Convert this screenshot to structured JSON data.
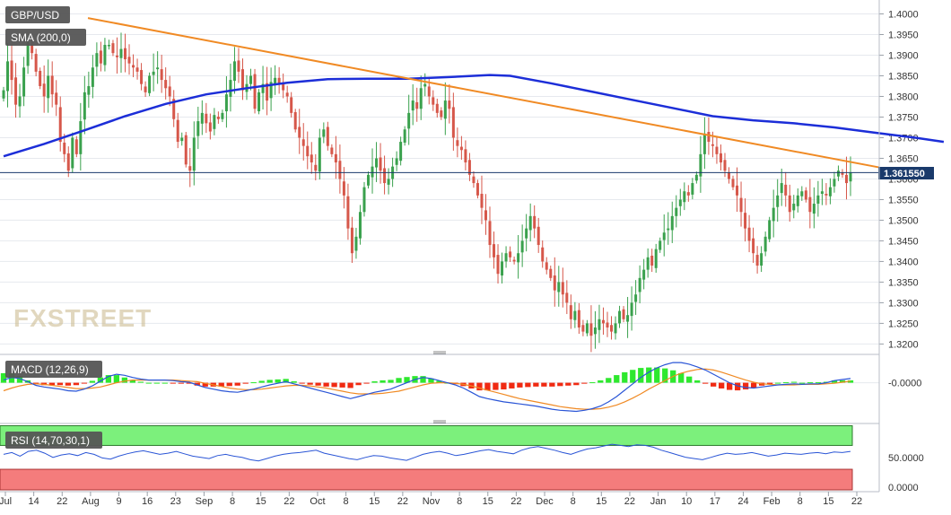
{
  "symbol": "GBP/USD",
  "indicators": {
    "sma": "SMA (200,0)",
    "macd": "MACD (12,26,9)",
    "rsi": "RSI (14,70,30,1)"
  },
  "watermark": "FXSTREET",
  "colors": {
    "bull": "#3aa14d",
    "bear": "#d6574a",
    "sma": "#1c2ed8",
    "trendline": "#f08a24",
    "price_line": "#1a3a6b",
    "macd_line": "#2a55d6",
    "signal_line": "#f08a24",
    "hist_pos": "#2ee82e",
    "hist_neg": "#f02a12",
    "rsi_line": "#2a55d6",
    "rsi_overbought_band": "#7cf07c",
    "rsi_oversold_band": "#f47c7c",
    "label_bg": "#555555"
  },
  "price_axis": {
    "ticks": [
      "1.4000",
      "1.3950",
      "1.3900",
      "1.3850",
      "1.3800",
      "1.3750",
      "1.3700",
      "1.3650",
      "1.3600",
      "1.3550",
      "1.3500",
      "1.3450",
      "1.3400",
      "1.3350",
      "1.3300",
      "1.3250",
      "1.3200"
    ],
    "last_price": "1.361550"
  },
  "macd_axis": {
    "ticks": [
      "-0.0000"
    ]
  },
  "rsi_axis": {
    "ticks": [
      "50.0000",
      "0.0000"
    ]
  },
  "time_axis": {
    "labels": [
      "Jul",
      "14",
      "22",
      "Aug",
      "9",
      "16",
      "23",
      "Sep",
      "8",
      "15",
      "22",
      "Oct",
      "8",
      "15",
      "22",
      "Nov",
      "8",
      "15",
      "22",
      "Dec",
      "8",
      "15",
      "22",
      "Jan",
      "10",
      "17",
      "24",
      "Feb",
      "8",
      "15",
      "22"
    ]
  },
  "chart_data": {
    "type": "candlestick",
    "title": "GBP/USD",
    "x_range": [
      "Jul",
      "22 Feb"
    ],
    "ylim": [
      1.319,
      1.4025
    ],
    "grid": true,
    "last_price": 1.36155,
    "trendline": {
      "start": 1.399,
      "end": 1.3628
    },
    "sma_200": [
      {
        "i": 0,
        "v": 1.3655
      },
      {
        "i": 10,
        "v": 1.3685
      },
      {
        "i": 20,
        "v": 1.3718
      },
      {
        "i": 30,
        "v": 1.3752
      },
      {
        "i": 40,
        "v": 1.3782
      },
      {
        "i": 50,
        "v": 1.3805
      },
      {
        "i": 60,
        "v": 1.382
      },
      {
        "i": 70,
        "v": 1.3833
      },
      {
        "i": 80,
        "v": 1.3842
      },
      {
        "i": 90,
        "v": 1.3843
      },
      {
        "i": 100,
        "v": 1.3843
      },
      {
        "i": 110,
        "v": 1.3847
      },
      {
        "i": 120,
        "v": 1.3852
      },
      {
        "i": 125,
        "v": 1.385
      },
      {
        "i": 135,
        "v": 1.3832
      },
      {
        "i": 145,
        "v": 1.3812
      },
      {
        "i": 155,
        "v": 1.3792
      },
      {
        "i": 165,
        "v": 1.3772
      },
      {
        "i": 175,
        "v": 1.3752
      },
      {
        "i": 185,
        "v": 1.3742
      },
      {
        "i": 195,
        "v": 1.3735
      },
      {
        "i": 205,
        "v": 1.3725
      },
      {
        "i": 215,
        "v": 1.3712
      },
      {
        "i": 225,
        "v": 1.37
      },
      {
        "i": 232,
        "v": 1.369
      }
    ],
    "closes": [
      1.3815,
      1.3885,
      1.384,
      1.378,
      1.38,
      1.387,
      1.393,
      1.3905,
      1.386,
      1.3825,
      1.38,
      1.385,
      1.3805,
      1.378,
      1.369,
      1.366,
      1.362,
      1.37,
      1.366,
      1.374,
      1.381,
      1.3825,
      1.387,
      1.3905,
      1.388,
      1.3925,
      1.3925,
      1.3905,
      1.3895,
      1.3915,
      1.389,
      1.388,
      1.387,
      1.386,
      1.383,
      1.381,
      1.385,
      1.386,
      1.387,
      1.384,
      1.382,
      1.38,
      1.3745,
      1.369,
      1.37,
      1.3635,
      1.362,
      1.37,
      1.374,
      1.376,
      1.3735,
      1.3715,
      1.3755,
      1.3745,
      1.376,
      1.3805,
      1.384,
      1.3885,
      1.386,
      1.3815,
      1.383,
      1.385,
      1.377,
      1.381,
      1.383,
      1.379,
      1.3835,
      1.3845,
      1.383,
      1.3815,
      1.38,
      1.376,
      1.372,
      1.37,
      1.368,
      1.3655,
      1.364,
      1.362,
      1.37,
      1.372,
      1.368,
      1.366,
      1.364,
      1.36,
      1.356,
      1.348,
      1.342,
      1.346,
      1.352,
      1.358,
      1.361,
      1.363,
      1.365,
      1.362,
      1.359,
      1.36,
      1.363,
      1.365,
      1.369,
      1.372,
      1.376,
      1.379,
      1.377,
      1.382,
      1.383,
      1.38,
      1.378,
      1.376,
      1.375,
      1.379,
      1.377,
      1.37,
      1.368,
      1.367,
      1.364,
      1.361,
      1.359,
      1.356,
      1.353,
      1.35,
      1.344,
      1.341,
      1.337,
      1.34,
      1.342,
      1.341,
      1.34,
      1.342,
      1.345,
      1.348,
      1.351,
      1.348,
      1.344,
      1.34,
      1.338,
      1.336,
      1.333,
      1.335,
      1.332,
      1.33,
      1.326,
      1.328,
      1.324,
      1.323,
      1.325,
      1.322,
      1.324,
      1.326,
      1.325,
      1.324,
      1.323,
      1.325,
      1.328,
      1.326,
      1.327,
      1.33,
      1.332,
      1.336,
      1.338,
      1.341,
      1.339,
      1.343,
      1.345,
      1.347,
      1.348,
      1.351,
      1.353,
      1.355,
      1.357,
      1.356,
      1.359,
      1.361,
      1.366,
      1.371,
      1.369,
      1.368,
      1.366,
      1.364,
      1.362,
      1.36,
      1.358,
      1.356,
      1.352,
      1.348,
      1.345,
      1.342,
      1.339,
      1.342,
      1.346,
      1.35,
      1.353,
      1.356,
      1.359,
      1.356,
      1.352,
      1.354,
      1.356,
      1.357,
      1.355,
      1.352,
      1.354,
      1.356,
      1.357,
      1.356,
      1.358,
      1.36,
      1.362,
      1.361,
      1.359,
      1.3615
    ],
    "macd_range": [
      -0.0065,
      0.0045
    ],
    "macd": [
      0.0005,
      0.001,
      0.0008,
      0.0002,
      -0.0005,
      -0.0008,
      -0.001,
      -0.0012,
      -0.0015,
      -0.0016,
      -0.0012,
      -0.0006,
      0.0003,
      0.0012,
      0.0016,
      0.0014,
      0.001,
      0.0007,
      0.0005,
      0.0005,
      0.0005,
      0.0004,
      0.0002,
      0.0001,
      -0.0004,
      -0.0009,
      -0.0012,
      -0.0015,
      -0.0017,
      -0.0018,
      -0.0015,
      -0.0012,
      -0.0008,
      -0.0004,
      -0.0001,
      0.0002,
      -0.0002,
      -0.0006,
      -0.001,
      -0.0014,
      -0.0018,
      -0.0022,
      -0.0026,
      -0.003,
      -0.0026,
      -0.0022,
      -0.0018,
      -0.0015,
      -0.0012,
      -0.0006,
      0.0,
      0.0006,
      0.001,
      0.0008,
      0.0004,
      0.0,
      -0.0004,
      -0.001,
      -0.0018,
      -0.0026,
      -0.003,
      -0.0033,
      -0.0036,
      -0.0038,
      -0.004,
      -0.0042,
      -0.0044,
      -0.0047,
      -0.005,
      -0.0052,
      -0.0053,
      -0.0054,
      -0.0052,
      -0.0049,
      -0.0044,
      -0.0036,
      -0.0026,
      -0.0014,
      -0.0002,
      0.001,
      0.002,
      0.0028,
      0.0034,
      0.0038,
      0.0038,
      0.0035,
      0.003,
      0.0024,
      0.0016,
      0.0008,
      0.0,
      -0.0006,
      -0.0009,
      -0.001,
      -0.0008,
      -0.0006,
      -0.0004,
      -0.0003,
      -0.0002,
      -0.0003,
      -0.0002,
      -0.0002,
      0.0,
      0.0004,
      0.0006,
      0.0008
    ],
    "signal": [
      -0.0015,
      -0.001,
      -0.0006,
      -0.0003,
      -0.0002,
      -0.0003,
      -0.0005,
      -0.0007,
      -0.0009,
      -0.0011,
      -0.0011,
      -0.001,
      -0.0008,
      -0.0004,
      0.0,
      0.0003,
      0.0005,
      0.0005,
      0.0005,
      0.0005,
      0.0005,
      0.0005,
      0.0004,
      0.0003,
      0.0002,
      -0.0001,
      -0.0004,
      -0.0007,
      -0.001,
      -0.0012,
      -0.0013,
      -0.0013,
      -0.0012,
      -0.001,
      -0.0008,
      -0.0006,
      -0.0005,
      -0.0005,
      -0.0006,
      -0.0008,
      -0.001,
      -0.0013,
      -0.0016,
      -0.0019,
      -0.0021,
      -0.0021,
      -0.0021,
      -0.002,
      -0.0018,
      -0.0016,
      -0.0012,
      -0.0008,
      -0.0004,
      -0.0001,
      0.0,
      0.0,
      -0.0001,
      -0.0003,
      -0.0006,
      -0.001,
      -0.0014,
      -0.0018,
      -0.0022,
      -0.0026,
      -0.003,
      -0.0033,
      -0.0036,
      -0.0039,
      -0.0042,
      -0.0045,
      -0.0047,
      -0.0049,
      -0.005,
      -0.005,
      -0.0049,
      -0.0046,
      -0.0042,
      -0.0036,
      -0.0029,
      -0.0021,
      -0.0012,
      -0.0004,
      0.0004,
      0.0012,
      0.0018,
      0.0022,
      0.0025,
      0.0026,
      0.0024,
      0.002,
      0.0015,
      0.001,
      0.0005,
      0.0001,
      -0.0002,
      -0.0003,
      -0.0004,
      -0.0004,
      -0.0004,
      -0.0003,
      -0.0003,
      -0.0003,
      -0.0002,
      -0.0001,
      0.0001,
      0.0003
    ],
    "rsi": [
      55,
      58,
      52,
      60,
      62,
      57,
      50,
      54,
      56,
      53,
      58,
      55,
      49,
      47,
      52,
      56,
      59,
      61,
      58,
      55,
      57,
      60,
      56,
      52,
      50,
      48,
      53,
      55,
      52,
      50,
      46,
      44,
      48,
      52,
      55,
      57,
      58,
      60,
      62,
      57,
      54,
      51,
      48,
      46,
      50,
      53,
      52,
      49,
      47,
      45,
      50,
      55,
      58,
      60,
      57,
      53,
      55,
      58,
      61,
      63,
      60,
      58,
      56,
      62,
      66,
      68,
      65,
      62,
      58,
      55,
      60,
      64,
      66,
      69,
      72,
      70,
      68,
      71,
      70,
      67,
      62,
      58,
      54,
      50,
      48,
      46,
      50,
      54,
      57,
      55,
      56,
      58,
      55,
      52,
      54,
      57,
      56,
      55,
      57,
      58,
      56,
      59,
      58,
      60
    ]
  }
}
